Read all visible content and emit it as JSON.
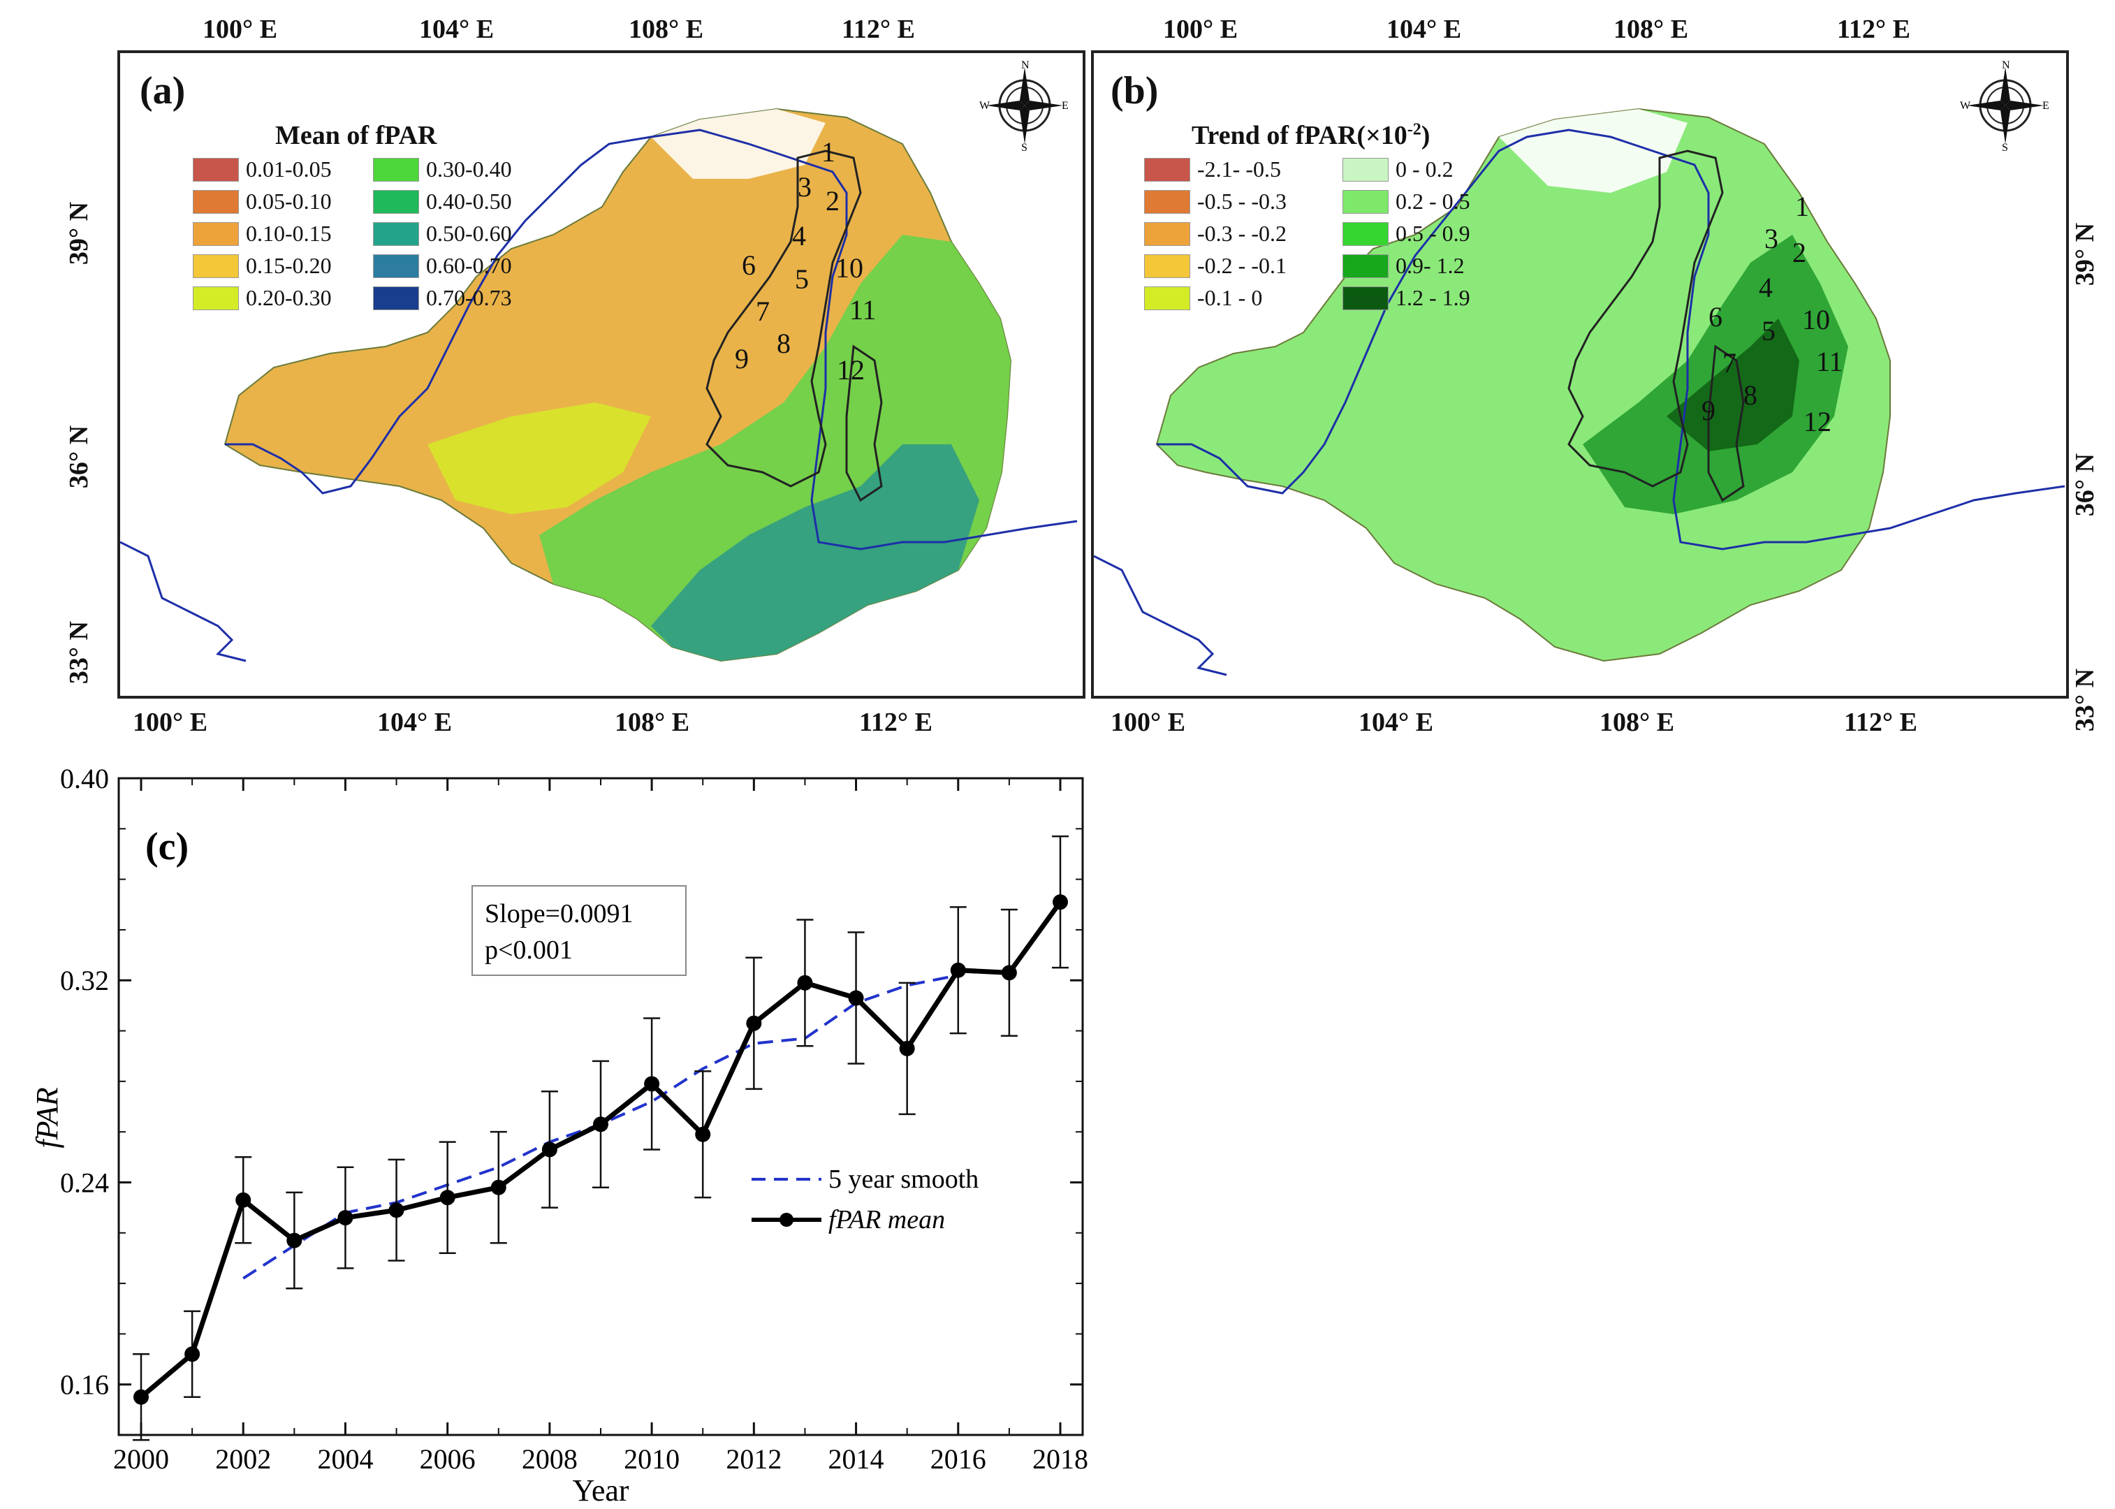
{
  "panel_a": {
    "tag": "(a)",
    "legend_title": "Mean of fPAR",
    "legend": [
      {
        "label": "0.01-0.05",
        "color": "#c8564a"
      },
      {
        "label": "0.05-0.10",
        "color": "#df7a35"
      },
      {
        "label": "0.10-0.15",
        "color": "#eea23a"
      },
      {
        "label": "0.15-0.20",
        "color": "#f3c738"
      },
      {
        "label": "0.20-0.30",
        "color": "#d4ec26"
      },
      {
        "label": "0.30-0.40",
        "color": "#4dd63a"
      },
      {
        "label": "0.40-0.50",
        "color": "#1fb85a"
      },
      {
        "label": "0.50-0.60",
        "color": "#23a38a"
      },
      {
        "label": "0.60-0.70",
        "color": "#2c7da0"
      },
      {
        "label": "0.70-0.73",
        "color": "#1a3e8e"
      }
    ],
    "lon_labels_top": [
      "100° E",
      "104° E",
      "108° E",
      "112° E"
    ],
    "lon_labels_bottom": [
      "100° E",
      "104° E",
      "108° E",
      "112° E"
    ],
    "lat_labels": [
      "39° N",
      "36° N",
      "33° N"
    ],
    "region_numbers": [
      "1",
      "2",
      "3",
      "4",
      "5",
      "6",
      "7",
      "8",
      "9",
      "10",
      "11",
      "12"
    ]
  },
  "panel_b": {
    "tag": "(b)",
    "legend_title": "Trend of fPAR(×10",
    "legend_title_sup": "-2",
    "legend_title_end": ")",
    "legend": [
      {
        "label": "-2.1- -0.5",
        "color": "#c8564a"
      },
      {
        "label": "-0.5 - -0.3",
        "color": "#df7a35"
      },
      {
        "label": "-0.3 - -0.2",
        "color": "#eea23a"
      },
      {
        "label": "-0.2 - -0.1",
        "color": "#f3c738"
      },
      {
        "label": "-0.1 - 0",
        "color": "#d4ec26"
      },
      {
        "label": "0 - 0.2",
        "color": "#c9f5c2"
      },
      {
        "label": "0.2 - 0.5",
        "color": "#7ee86a"
      },
      {
        "label": "0.5 - 0.9",
        "color": "#35d62f"
      },
      {
        "label": "0.9- 1.2",
        "color": "#17a81c"
      },
      {
        "label": "1.2 - 1.9",
        "color": "#0c5a12"
      }
    ],
    "lon_labels_top": [
      "100° E",
      "104° E",
      "108° E",
      "112° E"
    ],
    "lon_labels_bottom": [
      "100° E",
      "104° E",
      "108° E",
      "112° E"
    ],
    "lat_labels": [
      "39° N",
      "36° N",
      "33° N"
    ],
    "region_numbers": [
      "1",
      "2",
      "3",
      "4",
      "5",
      "6",
      "7",
      "8",
      "9",
      "10",
      "11",
      "12"
    ]
  },
  "compass": {
    "n": "N",
    "s": "S",
    "e": "E",
    "w": "W"
  },
  "colors": {
    "river": "#1d2fa8",
    "boundary": "#222222",
    "smooth": "#2233cc",
    "mean": "#000000"
  },
  "panel_c": {
    "tag": "(c)",
    "stat_slope": "Slope=0.0091",
    "stat_p": "p<0.001",
    "legend_smooth": "5 year smooth",
    "legend_mean": "fPAR mean"
  },
  "chart_data": {
    "type": "line",
    "title": "",
    "xlabel": "Year",
    "ylabel": "fPAR",
    "xlim": [
      2000,
      2018
    ],
    "ylim": [
      0.14,
      0.4
    ],
    "x_ticks": [
      2000,
      2002,
      2004,
      2006,
      2008,
      2010,
      2012,
      2014,
      2016,
      2018
    ],
    "y_ticks": [
      0.16,
      0.24,
      0.32,
      0.4
    ],
    "y_tick_labels": [
      "0.16",
      "0.24",
      "0.32",
      "0.40"
    ],
    "x_tick_labels": [
      "2000",
      "2002",
      "2004",
      "2006",
      "2008",
      "2010",
      "2012",
      "2014",
      "2016",
      "2018"
    ],
    "series": [
      {
        "name": "fPAR mean",
        "style": "solid-with-markers",
        "x": [
          2000,
          2001,
          2002,
          2003,
          2004,
          2005,
          2006,
          2007,
          2008,
          2009,
          2010,
          2011,
          2012,
          2013,
          2014,
          2015,
          2016,
          2017,
          2018
        ],
        "y": [
          0.155,
          0.172,
          0.233,
          0.217,
          0.226,
          0.229,
          0.234,
          0.238,
          0.253,
          0.263,
          0.279,
          0.259,
          0.303,
          0.319,
          0.313,
          0.293,
          0.324,
          0.323,
          0.351
        ],
        "err": [
          0.017,
          0.017,
          0.017,
          0.019,
          0.02,
          0.02,
          0.022,
          0.022,
          0.023,
          0.025,
          0.026,
          0.025,
          0.026,
          0.025,
          0.026,
          0.026,
          0.025,
          0.025,
          0.026
        ]
      },
      {
        "name": "5 year smooth",
        "style": "dashed",
        "x": [
          2002,
          2003,
          2004,
          2005,
          2006,
          2007,
          2008,
          2009,
          2010,
          2011,
          2012,
          2013,
          2014,
          2015,
          2016
        ],
        "y": [
          0.202,
          0.215,
          0.228,
          0.232,
          0.239,
          0.246,
          0.256,
          0.263,
          0.272,
          0.285,
          0.295,
          0.297,
          0.311,
          0.318,
          0.322
        ]
      }
    ]
  }
}
